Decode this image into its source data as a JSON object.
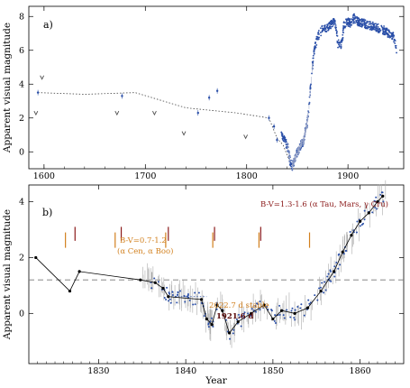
{
  "chart_data": [
    {
      "panel": "a)",
      "type": "scatter",
      "ylabel": "Apparent visual magnitude",
      "xlim": [
        1585,
        1955
      ],
      "ylim": [
        8.6,
        -1.0
      ],
      "y_inverted": true,
      "x_ticks": [
        1600,
        1700,
        1800,
        1900
      ],
      "y_ticks": [
        0,
        2,
        4,
        6,
        8
      ],
      "colors": {
        "observations": "#2a4fa8",
        "upper_limits": "#555555",
        "trend": "#444444"
      },
      "upper_limit_markers": [
        {
          "x": 1592,
          "y": 2.3
        },
        {
          "x": 1598,
          "y": 4.4
        },
        {
          "x": 1672,
          "y": 2.3
        },
        {
          "x": 1709,
          "y": 2.3
        },
        {
          "x": 1738,
          "y": 1.1
        },
        {
          "x": 1799,
          "y": 0.9
        }
      ],
      "scattered_points": [
        {
          "x": 1594,
          "y": 3.5
        },
        {
          "x": 1677,
          "y": 3.3
        },
        {
          "x": 1752,
          "y": 2.3
        },
        {
          "x": 1763,
          "y": 3.2
        },
        {
          "x": 1771,
          "y": 3.6
        },
        {
          "x": 1822,
          "y": 2.0
        },
        {
          "x": 1827,
          "y": 1.5
        },
        {
          "x": 1830,
          "y": 0.7
        }
      ],
      "trend_line": {
        "x": [
          1594,
          1640,
          1690,
          1740,
          1790,
          1822,
          1830,
          1836,
          1840,
          1843,
          1845
        ],
        "y": [
          3.5,
          3.4,
          3.5,
          2.6,
          2.3,
          2.0,
          0.8,
          0.4,
          -0.2,
          -0.6,
          -0.8
        ]
      },
      "light_curve": {
        "x": [
          1834,
          1838,
          1841,
          1843,
          1845,
          1847,
          1850,
          1852,
          1854,
          1856,
          1858,
          1860,
          1862,
          1864,
          1866,
          1868,
          1870,
          1873,
          1876,
          1880,
          1884,
          1887,
          1889,
          1890,
          1892,
          1894,
          1896,
          1899,
          1902,
          1906,
          1910,
          1915,
          1920,
          1925,
          1930,
          1935,
          1940,
          1945,
          1948
        ],
        "y": [
          1.2,
          0.6,
          0.2,
          -0.6,
          -0.9,
          -0.5,
          0.0,
          0.2,
          0.5,
          0.6,
          1.2,
          1.8,
          3.0,
          4.5,
          5.7,
          6.3,
          6.8,
          7.1,
          7.3,
          7.3,
          7.6,
          7.8,
          7.0,
          6.4,
          6.3,
          6.4,
          7.5,
          7.7,
          7.6,
          7.9,
          7.7,
          7.6,
          7.5,
          7.4,
          7.3,
          7.2,
          7.0,
          6.8,
          6.0
        ]
      }
    },
    {
      "panel": "b)",
      "type": "scatter",
      "xlabel": "Year",
      "ylabel": "Apparent visual magnitude",
      "xlim": [
        1822,
        1865
      ],
      "ylim": [
        4.6,
        -1.8
      ],
      "y_inverted": true,
      "x_ticks": [
        1830,
        1840,
        1850,
        1860
      ],
      "y_ticks": [
        0,
        2,
        4
      ],
      "colors": {
        "observations": "#2a4fa8",
        "mean_curve": "#000000",
        "errors": "#aaaaaa",
        "dashed": "#777777",
        "markers": "#c0601a"
      },
      "dashed_level": 1.2,
      "mean_curve": {
        "x": [
          1822.8,
          1826.7,
          1827.8,
          1834.8,
          1836.5,
          1837.4,
          1838.0,
          1841.8,
          1842.4,
          1843.0,
          1843.6,
          1844.2,
          1845.0,
          1846.0,
          1847.5,
          1849.0,
          1850.0,
          1851.0,
          1852.5,
          1854.0,
          1855.5,
          1857.0,
          1858.0,
          1859.0,
          1860.0,
          1861.0,
          1862.0,
          1862.6
        ],
        "y": [
          2.0,
          0.8,
          1.5,
          1.2,
          1.1,
          0.9,
          0.6,
          0.5,
          -0.2,
          -0.4,
          0.3,
          0.1,
          -0.7,
          -0.3,
          0.0,
          0.3,
          -0.2,
          0.1,
          0.0,
          0.2,
          0.8,
          1.5,
          2.2,
          2.8,
          3.3,
          3.6,
          4.0,
          4.2
        ]
      },
      "ref_markers_orange": [
        1826.2,
        1831.9,
        1837.7,
        1843.1,
        1848.4,
        1854.2
      ],
      "ref_markers_red": [
        1827.3,
        1832.6,
        1838.0,
        1843.3,
        1848.6
      ],
      "annotations": [
        {
          "text": "B-V=1.3-1.6 (α Tau, Mars, γ Cru)",
          "color": "red"
        },
        {
          "text": "B-V=0.7-1.2",
          "color": "orange"
        },
        {
          "text": "(α Cen, α Boo)",
          "color": "orange"
        },
        {
          "text": "2022.7 d stable",
          "color": "orange"
        },
        {
          "text": "1921.6 d",
          "color": "dark"
        }
      ]
    }
  ],
  "panels": {
    "a": {
      "tag": "a)",
      "ylabel": "Apparent visual magnitude",
      "x_ticks": [
        "1600",
        "1700",
        "1800",
        "1900"
      ],
      "y_ticks": [
        "0",
        "2",
        "4",
        "6",
        "8"
      ]
    },
    "b": {
      "tag": "b)",
      "ylabel": "Apparent visual magnitude",
      "xlabel": "Year",
      "x_ticks": [
        "1830",
        "1840",
        "1850",
        "1860"
      ],
      "y_ticks": [
        "0",
        "2",
        "4"
      ],
      "ann_red": "B-V=1.3-1.6 (α Tau, Mars, γ Cru)",
      "ann_orange_1": "B-V=0.7-1.2",
      "ann_orange_2": "(α Cen, α Boo)",
      "ann_stable": "2022.7 d stable",
      "ann_period": "1921.6 d"
    }
  }
}
